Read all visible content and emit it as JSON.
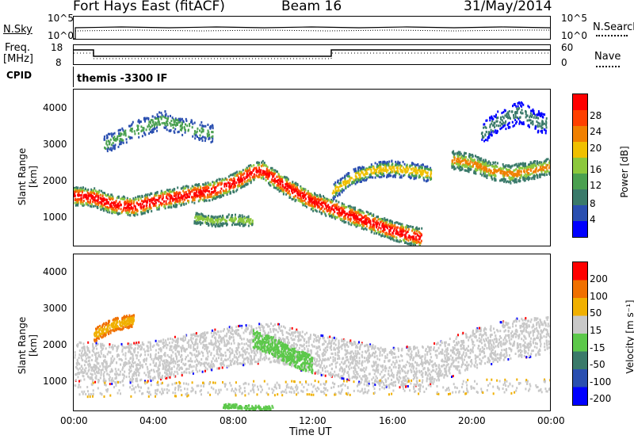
{
  "header": {
    "station": "Fort Hays East (fitACF)",
    "beam": "Beam 16",
    "date": "31/May/2014"
  },
  "noise_panel": {
    "left_label": "N.Sky",
    "right_label": "N.Search",
    "left_ticks": [
      "10^5",
      "10^0"
    ],
    "right_ticks": [
      "10^5",
      "10^0"
    ]
  },
  "freq_panel": {
    "left_label_1": "Freq.",
    "left_label_2": "[MHz]",
    "right_label": "Nave",
    "left_ticks": [
      "18",
      "8"
    ],
    "right_ticks": [
      "60",
      "0"
    ]
  },
  "cpid": {
    "label": "CPID",
    "value": "themis -3300 IF"
  },
  "power_panel": {
    "ylabel": "Slant Range [km]",
    "yticks": [
      "4000",
      "3000",
      "2000",
      "1000"
    ],
    "colorbar_label": "Power [dB]",
    "colorbar_ticks": [
      "28",
      "24",
      "20",
      "16",
      "12",
      "8",
      "4"
    ],
    "colors": [
      "#0000ff",
      "#2a4fb0",
      "#3a7a6a",
      "#4aa050",
      "#8cc83c",
      "#f0c000",
      "#f08000",
      "#ff4000",
      "#ff0000"
    ]
  },
  "velocity_panel": {
    "ylabel": "Slant Range [km]",
    "yticks": [
      "4000",
      "3000",
      "2000",
      "1000"
    ],
    "colorbar_label": "Velocity [m s⁻¹]",
    "colorbar_ticks": [
      "200",
      "100",
      "50",
      "15",
      "-15",
      "-50",
      "-100",
      "-200"
    ],
    "colors": [
      "#0000ff",
      "#2a4fb0",
      "#3a7a6a",
      "#5cc84a",
      "#c8c8c8",
      "#f0b000",
      "#f07000",
      "#ff0000"
    ]
  },
  "xaxis": {
    "ticks": [
      "00:00",
      "04:00",
      "08:00",
      "12:00",
      "16:00",
      "20:00",
      "00:00"
    ],
    "label": "Time UT"
  },
  "chart_data": [
    {
      "type": "heatmap",
      "title": "Power [dB]",
      "xlabel": "Time UT",
      "ylabel": "Slant Range [km]",
      "xlim": [
        0,
        24
      ],
      "ylim": [
        200,
        4500
      ],
      "clim": [
        0,
        30
      ],
      "band_centers": [
        [
          0.0,
          1600
        ],
        [
          1.0,
          1550
        ],
        [
          2.0,
          1350
        ],
        [
          3.0,
          1300
        ],
        [
          4.0,
          1450
        ],
        [
          5.0,
          1550
        ],
        [
          6.0,
          1650
        ],
        [
          7.0,
          1750
        ],
        [
          8.0,
          1950
        ],
        [
          9.0,
          2250
        ],
        [
          9.5,
          2300
        ],
        [
          10.0,
          2100
        ],
        [
          11.0,
          1750
        ],
        [
          12.0,
          1450
        ],
        [
          13.0,
          1250
        ],
        [
          14.0,
          1050
        ],
        [
          15.0,
          850
        ],
        [
          16.0,
          650
        ],
        [
          17.0,
          500
        ],
        [
          17.5,
          450
        ]
      ],
      "secondary_band": [
        [
          13.0,
          1700
        ],
        [
          14.0,
          2100
        ],
        [
          15.0,
          2300
        ],
        [
          16.0,
          2350
        ],
        [
          17.0,
          2300
        ],
        [
          18.0,
          2200
        ]
      ],
      "late_band": [
        [
          19.0,
          2600
        ],
        [
          20.0,
          2500
        ],
        [
          21.0,
          2300
        ],
        [
          22.0,
          2200
        ],
        [
          23.0,
          2300
        ],
        [
          24.0,
          2400
        ]
      ],
      "far_band": [
        [
          1.5,
          3000
        ],
        [
          3.0,
          3400
        ],
        [
          4.5,
          3700
        ],
        [
          5.5,
          3500
        ],
        [
          7.0,
          3300
        ]
      ],
      "upper_band": [
        [
          20.5,
          3300
        ],
        [
          21.5,
          3700
        ],
        [
          22.5,
          3900
        ],
        [
          23.5,
          3600
        ]
      ],
      "low_patch": [
        [
          6.0,
          1000
        ],
        [
          7.0,
          900
        ],
        [
          8.0,
          950
        ],
        [
          9.0,
          900
        ]
      ]
    },
    {
      "type": "heatmap",
      "title": "Velocity [m s⁻¹]",
      "xlabel": "Time UT",
      "ylabel": "Slant Range [km]",
      "xlim": [
        0,
        24
      ],
      "ylim": [
        200,
        4500
      ],
      "clim": [
        -250,
        250
      ],
      "velocity_bins": [
        200,
        100,
        50,
        15,
        -15,
        -50,
        -100,
        -200
      ],
      "gray_band": [
        [
          0.0,
          1600
        ],
        [
          2.0,
          1500
        ],
        [
          4.0,
          1600
        ],
        [
          6.0,
          1800
        ],
        [
          8.0,
          2000
        ],
        [
          10.0,
          2100
        ],
        [
          12.0,
          1800
        ],
        [
          14.0,
          1600
        ],
        [
          16.0,
          1400
        ],
        [
          18.0,
          1500
        ],
        [
          20.0,
          1900
        ],
        [
          22.0,
          2200
        ],
        [
          24.0,
          2300
        ]
      ],
      "orange_patch": [
        [
          1.0,
          2300
        ],
        [
          2.0,
          2600
        ],
        [
          3.0,
          2700
        ]
      ],
      "green_patch": [
        [
          9.0,
          2200
        ],
        [
          10.0,
          2000
        ],
        [
          11.0,
          1700
        ],
        [
          12.0,
          1500
        ]
      ],
      "green_low": [
        [
          7.5,
          350
        ],
        [
          8.0,
          350
        ],
        [
          9.0,
          300
        ],
        [
          10.0,
          300
        ]
      ]
    }
  ]
}
